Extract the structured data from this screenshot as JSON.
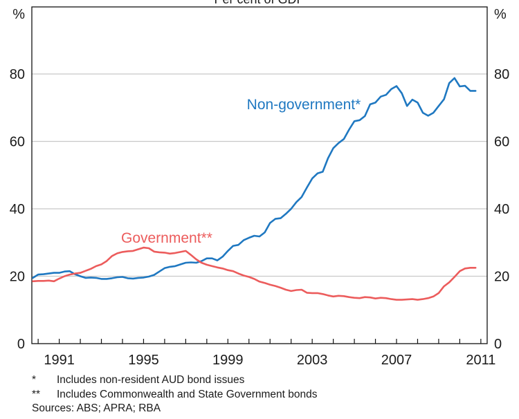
{
  "chart_data": {
    "type": "line",
    "title": "Per cent of GDP",
    "ylabel_left": "%",
    "ylabel_right": "%",
    "ylim": [
      0,
      80
    ],
    "yticks": [
      "0",
      "20",
      "40",
      "60",
      "80"
    ],
    "xticks": [
      "1991",
      "1995",
      "1999",
      "2003",
      "2007",
      "2011"
    ],
    "xlim": [
      1989.7,
      2011.3
    ],
    "grid": true,
    "series": [
      {
        "name": "Non-government*",
        "color": "#1f78c1",
        "x": [
          1989.75,
          1990.0,
          1990.25,
          1990.5,
          1990.75,
          1991.0,
          1991.25,
          1991.5,
          1991.75,
          1992.0,
          1992.25,
          1992.5,
          1992.75,
          1993.0,
          1993.25,
          1993.5,
          1993.75,
          1994.0,
          1994.25,
          1994.5,
          1994.75,
          1995.0,
          1995.25,
          1995.5,
          1995.75,
          1996.0,
          1996.25,
          1996.5,
          1996.75,
          1997.0,
          1997.25,
          1997.5,
          1997.75,
          1998.0,
          1998.25,
          1998.5,
          1998.75,
          1999.0,
          1999.25,
          1999.5,
          1999.75,
          2000.0,
          2000.25,
          2000.5,
          2000.75,
          2001.0,
          2001.25,
          2001.5,
          2001.75,
          2002.0,
          2002.25,
          2002.5,
          2002.75,
          2003.0,
          2003.25,
          2003.5,
          2003.75,
          2004.0,
          2004.25,
          2004.5,
          2004.75,
          2005.0,
          2005.25,
          2005.5,
          2005.75,
          2006.0,
          2006.25,
          2006.5,
          2006.75,
          2007.0,
          2007.25,
          2007.5,
          2007.75,
          2008.0,
          2008.25,
          2008.5,
          2008.75,
          2009.0,
          2009.25,
          2009.5,
          2009.75,
          2010.0,
          2010.25,
          2010.5,
          2010.75
        ],
        "values": [
          19.5,
          20.5,
          20.6,
          20.8,
          21.0,
          21.0,
          21.4,
          21.5,
          20.6,
          20.0,
          19.5,
          19.6,
          19.5,
          19.2,
          19.2,
          19.4,
          19.7,
          19.8,
          19.4,
          19.3,
          19.5,
          19.6,
          19.9,
          20.4,
          21.4,
          22.4,
          22.8,
          23.0,
          23.5,
          24.0,
          24.1,
          24.0,
          24.5,
          25.3,
          25.3,
          24.7,
          25.8,
          27.5,
          29.0,
          29.3,
          30.7,
          31.4,
          32.0,
          31.8,
          33.0,
          35.8,
          37.0,
          37.2,
          38.5,
          40.0,
          42.0,
          43.5,
          46.3,
          49.0,
          50.5,
          51.0,
          55.0,
          58.0,
          59.5,
          60.7,
          63.5,
          66.0,
          66.3,
          67.5,
          71.0,
          71.5,
          73.3,
          73.8,
          75.5,
          76.4,
          74.3,
          70.5,
          72.4,
          71.5,
          68.5,
          67.6,
          68.5,
          70.5,
          72.5,
          77.3,
          78.8,
          76.3,
          76.5,
          75.0,
          75.0
        ]
      },
      {
        "name": "Government**",
        "color": "#ec5c5c",
        "x": [
          1989.75,
          1990.0,
          1990.25,
          1990.5,
          1990.75,
          1991.0,
          1991.25,
          1991.5,
          1991.75,
          1992.0,
          1992.25,
          1992.5,
          1992.75,
          1993.0,
          1993.25,
          1993.5,
          1993.75,
          1994.0,
          1994.25,
          1994.5,
          1994.75,
          1995.0,
          1995.25,
          1995.5,
          1995.75,
          1996.0,
          1996.25,
          1996.5,
          1996.75,
          1997.0,
          1997.25,
          1997.5,
          1997.75,
          1998.0,
          1998.25,
          1998.5,
          1998.75,
          1999.0,
          1999.25,
          1999.5,
          1999.75,
          2000.0,
          2000.25,
          2000.5,
          2000.75,
          2001.0,
          2001.25,
          2001.5,
          2001.75,
          2002.0,
          2002.25,
          2002.5,
          2002.75,
          2003.0,
          2003.25,
          2003.5,
          2003.75,
          2004.0,
          2004.25,
          2004.5,
          2004.75,
          2005.0,
          2005.25,
          2005.5,
          2005.75,
          2006.0,
          2006.25,
          2006.5,
          2006.75,
          2007.0,
          2007.25,
          2007.5,
          2007.75,
          2008.0,
          2008.25,
          2008.5,
          2008.75,
          2009.0,
          2009.25,
          2009.5,
          2009.75,
          2010.0,
          2010.25,
          2010.5,
          2010.75
        ],
        "values": [
          18.5,
          18.6,
          18.6,
          18.7,
          18.5,
          19.3,
          20.0,
          20.5,
          20.8,
          21.0,
          21.6,
          22.2,
          23.0,
          23.5,
          24.5,
          26.0,
          26.8,
          27.2,
          27.4,
          27.5,
          28.0,
          28.5,
          28.3,
          27.3,
          27.1,
          27.0,
          26.7,
          26.9,
          27.2,
          27.5,
          26.3,
          25.0,
          24.0,
          23.4,
          23.0,
          22.6,
          22.3,
          21.8,
          21.5,
          20.8,
          20.2,
          19.8,
          19.2,
          18.4,
          18.0,
          17.5,
          17.1,
          16.6,
          16.0,
          15.6,
          15.9,
          16.0,
          15.1,
          15.0,
          15.0,
          14.7,
          14.3,
          14.0,
          14.2,
          14.1,
          13.8,
          13.6,
          13.5,
          13.8,
          13.7,
          13.4,
          13.6,
          13.5,
          13.2,
          13.0,
          13.0,
          13.1,
          13.2,
          13.0,
          13.2,
          13.5,
          14.0,
          15.0,
          17.0,
          18.2,
          19.8,
          21.5,
          22.3,
          22.5,
          22.5
        ]
      }
    ],
    "annotations": [
      {
        "text": "Non-government*",
        "x": 2002.6,
        "y": 69.5,
        "series": 0
      },
      {
        "text": "Government**",
        "x": 1996.1,
        "y": 30.0,
        "series": 1
      }
    ]
  },
  "notes": [
    {
      "mark": "*",
      "text": "Includes non-resident AUD bond issues"
    },
    {
      "mark": "**",
      "text": "Includes Commonwealth and State Government bonds"
    }
  ],
  "sources": "Sources: ABS; APRA; RBA"
}
